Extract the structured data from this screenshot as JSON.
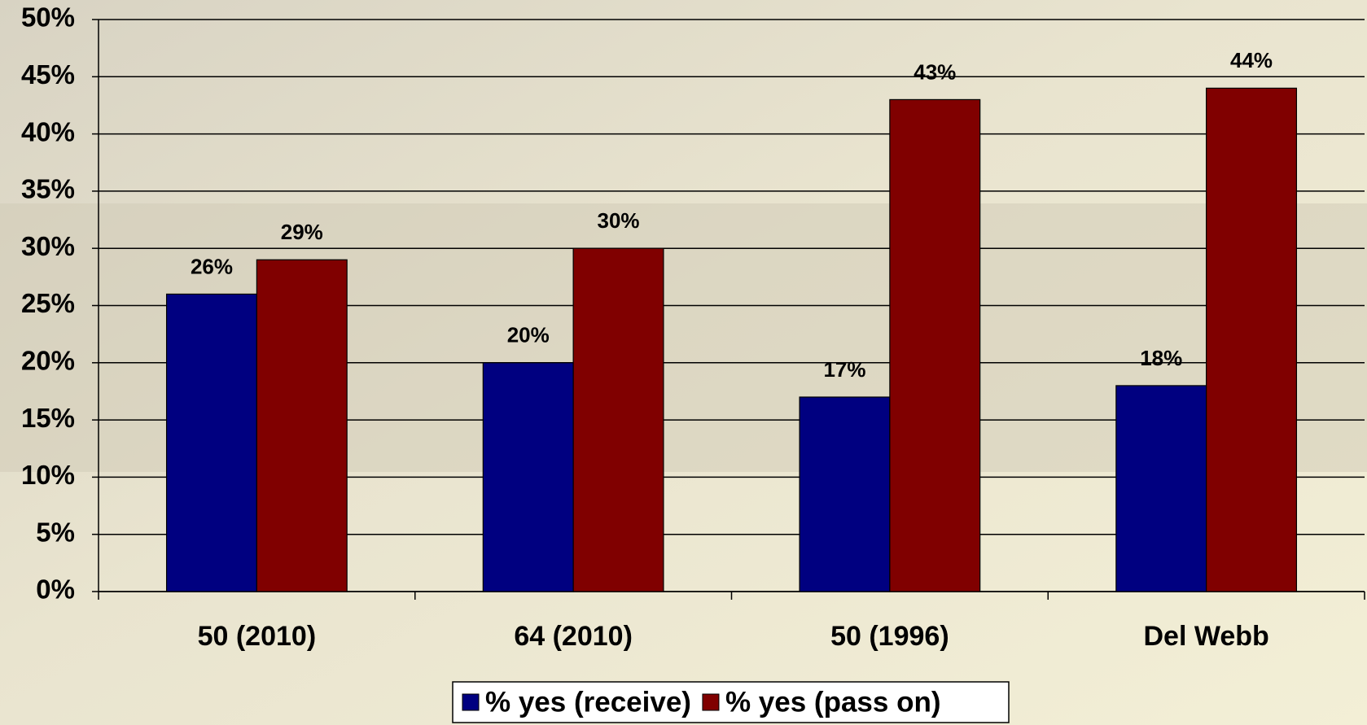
{
  "chart_data": {
    "type": "bar",
    "categories": [
      "50 (2010)",
      "64 (2010)",
      "50 (1996)",
      "Del Webb"
    ],
    "series": [
      {
        "name": "% yes (receive)",
        "color": "#000080",
        "values": [
          26,
          20,
          17,
          18
        ],
        "value_labels": [
          "26%",
          "20%",
          "17%",
          "18%"
        ]
      },
      {
        "name": "% yes (pass on)",
        "color": "#800000",
        "values": [
          29,
          30,
          43,
          44
        ],
        "value_labels": [
          "29%",
          "30%",
          "43%",
          "44%"
        ]
      }
    ],
    "ylim": [
      0,
      50
    ],
    "yticks": [
      {
        "value": 0,
        "label": "0%"
      },
      {
        "value": 5,
        "label": "5%"
      },
      {
        "value": 10,
        "label": "10%"
      },
      {
        "value": 15,
        "label": "15%"
      },
      {
        "value": 20,
        "label": "20%"
      },
      {
        "value": 25,
        "label": "25%"
      },
      {
        "value": 30,
        "label": "30%"
      },
      {
        "value": 35,
        "label": "35%"
      },
      {
        "value": 40,
        "label": "40%"
      },
      {
        "value": 45,
        "label": "45%"
      },
      {
        "value": 50,
        "label": "50%"
      }
    ],
    "grid": true,
    "legend": "bottom"
  }
}
